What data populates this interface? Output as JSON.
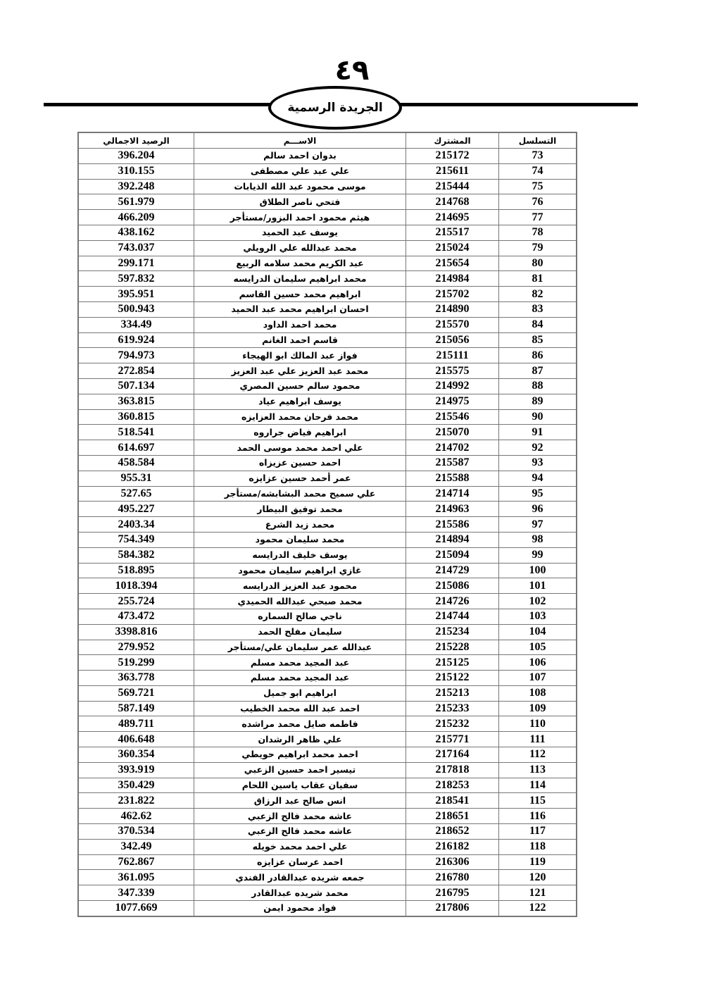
{
  "header": {
    "page_number": "٤٩",
    "gazette_title": "الجريدة الرسمية"
  },
  "table": {
    "columns": [
      "التسلسل",
      "المشترك",
      "الاســـم",
      "الرصيد الاجمالي"
    ],
    "rows": [
      [
        "73",
        "215172",
        "بدوان احمد سالم",
        "396.204"
      ],
      [
        "74",
        "215611",
        "علي عبد علي مصطفى",
        "310.155"
      ],
      [
        "75",
        "215444",
        "موسى  محمود عبد الله  الذيابات",
        "392.248"
      ],
      [
        "76",
        "214768",
        "فتحي ناصر الطلاق",
        "561.979"
      ],
      [
        "77",
        "214695",
        "هيثم محمود احمد البزور/مستأجر",
        "466.209"
      ],
      [
        "78",
        "215517",
        "يوسف عبد الحميد",
        "438.162"
      ],
      [
        "79",
        "215024",
        "محمد عبدالله علي الرويلي",
        "743.037"
      ],
      [
        "80",
        "215654",
        "عبد الكريم  محمد سلامه  الربيع",
        "299.171"
      ],
      [
        "81",
        "214984",
        "محمد ابراهيم سليمان الدرايسه",
        "597.832"
      ],
      [
        "82",
        "215702",
        "ابراهيم  محمد حسين القاسم",
        "395.951"
      ],
      [
        "83",
        "214890",
        "احسان ابراهيم محمد عبد الحميد",
        "500.943"
      ],
      [
        "84",
        "215570",
        "محمد احمد الداود",
        "334.49"
      ],
      [
        "85",
        "215056",
        "قاسم احمد الغانم",
        "619.924"
      ],
      [
        "86",
        "215111",
        "فواز عبد المالك  ابو الهيجاء",
        "794.973"
      ],
      [
        "87",
        "215575",
        "محمد عبد العزيز  علي عبد العزيز",
        "272.854"
      ],
      [
        "88",
        "214992",
        "محمود سالم حسين المصري",
        "507.134"
      ],
      [
        "89",
        "214975",
        "يوسف ابراهيم  عياد",
        "363.815"
      ],
      [
        "90",
        "215546",
        "محمد فرحان محمد العزايزه",
        "360.815"
      ],
      [
        "91",
        "215070",
        "ابراهيم فياض  جراروه",
        "518.541"
      ],
      [
        "92",
        "214702",
        "علي احمد محمد موسى الحمد",
        "614.697"
      ],
      [
        "93",
        "215587",
        "احمد حسين  عزيزاه",
        "458.584"
      ],
      [
        "94",
        "215588",
        "عمر أحمد حسين عزايزه",
        "955.31"
      ],
      [
        "95",
        "214714",
        "علي سميح محمد البشابشه/مستأجر",
        "527.65"
      ],
      [
        "96",
        "214963",
        "محمد توفيق  البيطار",
        "495.227"
      ],
      [
        "97",
        "215586",
        "محمد  زيد  الشرع",
        "2403.34"
      ],
      [
        "98",
        "214894",
        "محمد سليمان محمود",
        "754.349"
      ],
      [
        "99",
        "215094",
        "يوسف خليف  الدرايسه",
        "584.382"
      ],
      [
        "100",
        "214729",
        "غازي ابراهيم سليمان محمود",
        "518.895"
      ],
      [
        "101",
        "215086",
        "محمود عبد العزيز  الدرايسه",
        "1018.394"
      ],
      [
        "102",
        "214726",
        "محمد صبحي عبدالله الحميدي",
        "255.724"
      ],
      [
        "103",
        "214744",
        "ناجي  صالح السماره",
        "473.472"
      ],
      [
        "104",
        "215234",
        "سليمان مفلح الحمد",
        "3398.816"
      ],
      [
        "105",
        "215228",
        "عبدالله عمر سليمان علي/مستأجر",
        "279.952"
      ],
      [
        "106",
        "215125",
        "عبد المجيد محمد مسلم",
        "519.299"
      ],
      [
        "107",
        "215122",
        "عبد المجيد  محمد مسلم",
        "363.778"
      ],
      [
        "108",
        "215213",
        "ابراهيم ابو جميل",
        "569.721"
      ],
      [
        "109",
        "215233",
        "احمد عبد الله محمد الخطيب",
        "587.149"
      ],
      [
        "110",
        "215232",
        "فاطمه صايل محمد مراشده",
        "489.711"
      ],
      [
        "111",
        "215771",
        "علي ظاهر الرشدان",
        "406.648"
      ],
      [
        "112",
        "217164",
        "احمد محمد ابراهيم حويطي",
        "360.354"
      ],
      [
        "113",
        "217818",
        "تيسير احمد حسين الزعبي",
        "393.919"
      ],
      [
        "114",
        "218253",
        "سفيان عقاب ياسين اللحام",
        "350.429"
      ],
      [
        "115",
        "218541",
        "انس صالح عبد الرزاق",
        "231.822"
      ],
      [
        "116",
        "218651",
        "عاشه محمد فالح الزعبي",
        "462.62"
      ],
      [
        "117",
        "218652",
        "عاشه محمد فالح الزعبي",
        "370.534"
      ],
      [
        "118",
        "216182",
        "علي احمد محمد خويله",
        "342.49"
      ],
      [
        "119",
        "216306",
        "احمد عرسان عزايزه",
        "762.867"
      ],
      [
        "120",
        "216780",
        "جمعه شريده عبدالقادر الفندي",
        "361.095"
      ],
      [
        "121",
        "216795",
        "محمد شريده عبدالقادر",
        "347.339"
      ],
      [
        "122",
        "217806",
        "فواد محمود ايمن",
        "1077.669"
      ]
    ]
  }
}
